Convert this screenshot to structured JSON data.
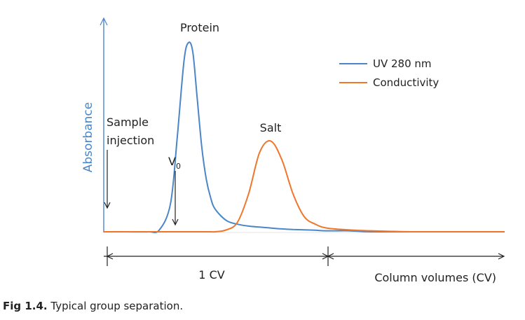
{
  "chart_data": {
    "type": "line",
    "ylabel": "Absorbance",
    "xlabel": "Column volumes (CV)",
    "x_scale_label": "1 CV",
    "annotations": {
      "peak_protein": "Protein",
      "peak_salt": "Salt",
      "sample_injection_line1": "Sample",
      "sample_injection_line2": "injection",
      "void_volume_main": "V",
      "void_volume_sub": "0"
    },
    "legend_position": "top-right",
    "grid": false,
    "xlim": [
      0,
      1.8
    ],
    "ylim": [
      0,
      1.05
    ],
    "x": [
      0,
      0.1,
      0.2,
      0.25,
      0.3,
      0.33,
      0.36,
      0.38,
      0.4,
      0.42,
      0.44,
      0.46,
      0.48,
      0.5,
      0.55,
      0.6,
      0.65,
      0.7,
      0.75,
      0.8,
      0.85,
      0.9,
      0.95,
      1.0,
      1.1,
      1.2,
      1.4,
      1.6,
      1.8
    ],
    "series": [
      {
        "name": "UV 280 nm",
        "color": "#4a86c8",
        "values": [
          0.0,
          0.0,
          0.0,
          0.01,
          0.15,
          0.5,
          0.9,
          1.0,
          0.95,
          0.7,
          0.45,
          0.28,
          0.18,
          0.12,
          0.06,
          0.04,
          0.03,
          0.025,
          0.02,
          0.015,
          0.012,
          0.01,
          0.008,
          0.005,
          0.005,
          0.0,
          0.0,
          0.0,
          0.0
        ]
      },
      {
        "name": "Conductivity",
        "color": "#f0762a",
        "values": [
          0.0,
          0.0,
          0.0,
          0.0,
          0.0,
          0.0,
          0.0,
          0.0,
          0.0,
          0.0,
          0.0,
          0.0,
          0.0,
          0.0,
          0.01,
          0.05,
          0.2,
          0.42,
          0.48,
          0.38,
          0.2,
          0.08,
          0.04,
          0.02,
          0.01,
          0.005,
          0.0,
          0.0,
          0.0
        ]
      }
    ]
  },
  "caption": {
    "bold": "Fig 1.4.",
    "text": " Typical group separation."
  }
}
